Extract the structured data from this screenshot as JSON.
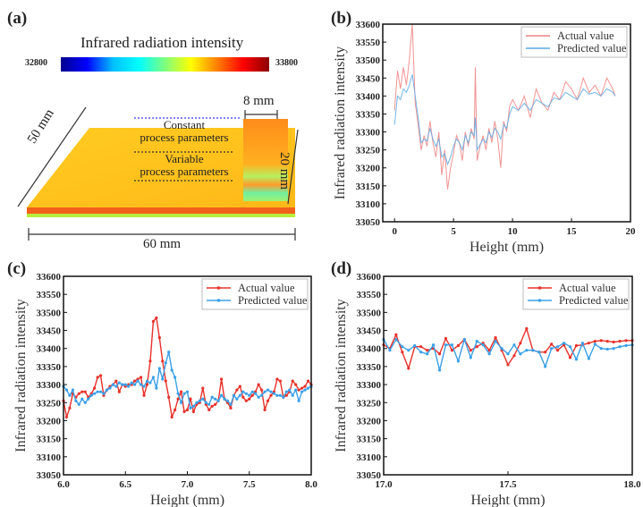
{
  "panel_a": {
    "label": "(a)",
    "colorbar_title": "Infrared radiation intensity",
    "colorbar_min": "32800",
    "colorbar_max": "33800",
    "colormap": [
      "#00008f",
      "#0000ff",
      "#00bfff",
      "#00ffff",
      "#7fff7f",
      "#ffff00",
      "#ff7f00",
      "#ff0000",
      "#8b0000"
    ],
    "dim_width": "8 mm",
    "dim_height": "20 mm",
    "dim_depth": "50 mm",
    "dim_length": "60 mm",
    "region_constant_line1": "Constant",
    "region_constant_line2": "process parameters",
    "region_variable_line1": "Variable",
    "region_variable_line2": "process parameters"
  },
  "chart_data": [
    {
      "id": "b",
      "panel_label": "(b)",
      "type": "line",
      "xlabel": "Height (mm)",
      "ylabel": "Infrared radiation intensity",
      "xlim": [
        -1,
        20
      ],
      "ylim": [
        33050,
        33600
      ],
      "xticks": [
        0,
        5,
        10,
        15,
        20
      ],
      "xtick_labels": [
        "0",
        "5",
        "10",
        "15",
        "20"
      ],
      "yticks": [
        33050,
        33100,
        33150,
        33200,
        33250,
        33300,
        33350,
        33400,
        33450,
        33500,
        33550,
        33600
      ],
      "legend": "top-right",
      "markers": false,
      "series": [
        {
          "name": "Actual value",
          "color": "#f08080",
          "x": [
            0,
            0.25,
            0.5,
            0.75,
            1.0,
            1.25,
            1.5,
            1.75,
            2.0,
            2.25,
            2.5,
            2.75,
            3.0,
            3.25,
            3.5,
            3.75,
            4.0,
            4.25,
            4.5,
            4.75,
            5.0,
            5.25,
            5.5,
            5.75,
            6.0,
            6.25,
            6.5,
            6.75,
            6.85,
            7.0,
            7.25,
            7.5,
            7.75,
            8.0,
            8.25,
            8.5,
            8.75,
            9.0,
            9.25,
            9.5,
            9.75,
            10.0,
            10.5,
            11.0,
            11.5,
            12.0,
            12.5,
            13.0,
            13.5,
            14.0,
            14.5,
            15.0,
            15.5,
            16.0,
            16.5,
            17.0,
            17.5,
            18.0,
            18.5,
            18.7
          ],
          "y": [
            33360,
            33470,
            33420,
            33480,
            33430,
            33500,
            33600,
            33380,
            33320,
            33250,
            33290,
            33260,
            33330,
            33270,
            33230,
            33300,
            33180,
            33250,
            33140,
            33200,
            33240,
            33290,
            33270,
            33220,
            33300,
            33260,
            33310,
            33280,
            33480,
            33220,
            33260,
            33290,
            33250,
            33310,
            33270,
            33330,
            33280,
            33200,
            33330,
            33300,
            33370,
            33390,
            33360,
            33400,
            33340,
            33420,
            33380,
            33360,
            33410,
            33390,
            33440,
            33420,
            33390,
            33450,
            33410,
            33430,
            33400,
            33450,
            33420,
            33400
          ]
        },
        {
          "name": "Predicted value",
          "color": "#5aaae6",
          "x": [
            0,
            0.25,
            0.5,
            0.75,
            1.0,
            1.25,
            1.5,
            1.75,
            2.0,
            2.25,
            2.5,
            2.75,
            3.0,
            3.25,
            3.5,
            3.75,
            4.0,
            4.25,
            4.5,
            4.75,
            5.0,
            5.25,
            5.5,
            5.75,
            6.0,
            6.25,
            6.5,
            6.75,
            6.85,
            7.0,
            7.25,
            7.5,
            7.75,
            8.0,
            8.25,
            8.5,
            8.75,
            9.0,
            9.25,
            9.5,
            9.75,
            10.0,
            10.5,
            11.0,
            11.5,
            12.0,
            12.5,
            13.0,
            13.5,
            14.0,
            14.5,
            15.0,
            15.5,
            16.0,
            16.5,
            17.0,
            17.5,
            18.0,
            18.5,
            18.7
          ],
          "y": [
            33320,
            33400,
            33390,
            33420,
            33410,
            33430,
            33460,
            33400,
            33340,
            33270,
            33280,
            33275,
            33310,
            33280,
            33260,
            33280,
            33230,
            33240,
            33210,
            33230,
            33260,
            33280,
            33270,
            33250,
            33290,
            33270,
            33300,
            33290,
            33340,
            33250,
            33265,
            33280,
            33270,
            33300,
            33285,
            33310,
            33300,
            33280,
            33320,
            33310,
            33350,
            33370,
            33360,
            33380,
            33360,
            33390,
            33380,
            33370,
            33395,
            33390,
            33410,
            33400,
            33390,
            33420,
            33405,
            33410,
            33400,
            33420,
            33410,
            33400
          ]
        }
      ]
    },
    {
      "id": "c",
      "panel_label": "(c)",
      "type": "line",
      "xlabel": "Height (mm)",
      "ylabel": "Infrared radiation intensity",
      "xlim": [
        6.0,
        8.0
      ],
      "ylim": [
        33050,
        33600
      ],
      "xticks": [
        6.0,
        6.5,
        7.0,
        7.5,
        8.0
      ],
      "xtick_labels": [
        "6.0",
        "6.5",
        "7.0",
        "7.5",
        "8.0"
      ],
      "yticks": [
        33050,
        33100,
        33150,
        33200,
        33250,
        33300,
        33350,
        33400,
        33450,
        33500,
        33550,
        33600
      ],
      "legend": "top-right",
      "markers": true,
      "series": [
        {
          "name": "Actual value",
          "color": "#e8302a",
          "x": [
            6.0,
            6.025,
            6.05,
            6.075,
            6.1,
            6.125,
            6.15,
            6.175,
            6.2,
            6.225,
            6.25,
            6.275,
            6.3,
            6.325,
            6.35,
            6.375,
            6.4,
            6.425,
            6.45,
            6.475,
            6.5,
            6.525,
            6.55,
            6.575,
            6.6,
            6.625,
            6.65,
            6.675,
            6.7,
            6.725,
            6.75,
            6.775,
            6.8,
            6.825,
            6.85,
            6.875,
            6.9,
            6.925,
            6.95,
            6.975,
            7.0,
            7.025,
            7.05,
            7.075,
            7.1,
            7.125,
            7.15,
            7.175,
            7.2,
            7.225,
            7.25,
            7.275,
            7.3,
            7.325,
            7.35,
            7.375,
            7.4,
            7.425,
            7.45,
            7.475,
            7.5,
            7.525,
            7.55,
            7.575,
            7.6,
            7.625,
            7.65,
            7.675,
            7.7,
            7.725,
            7.75,
            7.775,
            7.8,
            7.825,
            7.85,
            7.875,
            7.9,
            7.925,
            7.95,
            7.975,
            8.0
          ],
          "y": [
            33255,
            33210,
            33235,
            33275,
            33265,
            33275,
            33280,
            33280,
            33265,
            33275,
            33290,
            33320,
            33325,
            33270,
            33285,
            33295,
            33300,
            33310,
            33280,
            33300,
            33295,
            33300,
            33300,
            33310,
            33315,
            33320,
            33270,
            33300,
            33365,
            33475,
            33485,
            33430,
            33365,
            33310,
            33265,
            33210,
            33230,
            33260,
            33280,
            33225,
            33230,
            33260,
            33225,
            33245,
            33250,
            33290,
            33245,
            33230,
            33240,
            33245,
            33255,
            33315,
            33260,
            33250,
            33235,
            33270,
            33285,
            33295,
            33265,
            33255,
            33260,
            33270,
            33280,
            33300,
            33285,
            33230,
            33255,
            33270,
            33280,
            33315,
            33310,
            33265,
            33270,
            33280,
            33310,
            33300,
            33285,
            33290,
            33295,
            33310,
            33300
          ]
        },
        {
          "name": "Predicted value",
          "color": "#3aa0e8",
          "x": [
            6.0,
            6.025,
            6.05,
            6.075,
            6.1,
            6.125,
            6.15,
            6.175,
            6.2,
            6.225,
            6.25,
            6.275,
            6.3,
            6.325,
            6.35,
            6.375,
            6.4,
            6.425,
            6.45,
            6.475,
            6.5,
            6.525,
            6.55,
            6.575,
            6.6,
            6.625,
            6.65,
            6.675,
            6.7,
            6.725,
            6.75,
            6.775,
            6.8,
            6.825,
            6.85,
            6.875,
            6.9,
            6.925,
            6.95,
            6.975,
            7.0,
            7.025,
            7.05,
            7.075,
            7.1,
            7.125,
            7.15,
            7.175,
            7.2,
            7.225,
            7.25,
            7.275,
            7.3,
            7.325,
            7.35,
            7.375,
            7.4,
            7.425,
            7.45,
            7.475,
            7.5,
            7.525,
            7.55,
            7.575,
            7.6,
            7.625,
            7.65,
            7.675,
            7.7,
            7.725,
            7.75,
            7.775,
            7.8,
            7.825,
            7.85,
            7.875,
            7.9,
            7.925,
            7.95,
            7.975,
            8.0
          ],
          "y": [
            33295,
            33285,
            33270,
            33285,
            33255,
            33245,
            33260,
            33250,
            33260,
            33270,
            33275,
            33280,
            33280,
            33275,
            33285,
            33290,
            33300,
            33295,
            33305,
            33300,
            33300,
            33295,
            33305,
            33300,
            33310,
            33300,
            33295,
            33310,
            33305,
            33320,
            33290,
            33345,
            33315,
            33360,
            33390,
            33340,
            33320,
            33275,
            33250,
            33275,
            33280,
            33235,
            33240,
            33250,
            33255,
            33260,
            33250,
            33245,
            33265,
            33260,
            33255,
            33270,
            33260,
            33255,
            33245,
            33270,
            33260,
            33270,
            33280,
            33275,
            33270,
            33280,
            33275,
            33265,
            33270,
            33280,
            33285,
            33280,
            33275,
            33270,
            33270,
            33265,
            33280,
            33285,
            33270,
            33285,
            33255,
            33280,
            33285,
            33290,
            33295
          ]
        }
      ]
    },
    {
      "id": "d",
      "panel_label": "(d)",
      "type": "line",
      "xlabel": "Height (mm)",
      "ylabel": "Infrared radiation intensity",
      "xlim": [
        17.0,
        18.0
      ],
      "ylim": [
        33050,
        33600
      ],
      "xticks": [
        17.0,
        17.5,
        18.0
      ],
      "xtick_labels": [
        "17.0",
        "17.5",
        "18.0"
      ],
      "yticks": [
        33050,
        33100,
        33150,
        33200,
        33250,
        33300,
        33350,
        33400,
        33450,
        33500,
        33550,
        33600
      ],
      "legend": "top-right",
      "markers": true,
      "series": [
        {
          "name": "Actual value",
          "color": "#e8302a",
          "x": [
            17.0,
            17.025,
            17.05,
            17.075,
            17.1,
            17.125,
            17.15,
            17.175,
            17.2,
            17.225,
            17.25,
            17.275,
            17.3,
            17.325,
            17.35,
            17.375,
            17.4,
            17.425,
            17.45,
            17.475,
            17.5,
            17.525,
            17.55,
            17.575,
            17.6,
            17.625,
            17.65,
            17.675,
            17.7,
            17.725,
            17.75,
            17.775,
            17.8,
            17.825,
            17.85,
            17.875,
            17.9,
            17.925,
            17.95,
            17.975,
            18.0
          ],
          "y": [
            33410,
            33400,
            33438,
            33390,
            33345,
            33405,
            33405,
            33395,
            33400,
            33385,
            33428,
            33395,
            33408,
            33425,
            33395,
            33405,
            33415,
            33395,
            33430,
            33395,
            33355,
            33380,
            33415,
            33455,
            33395,
            33390,
            33390,
            33412,
            33395,
            33410,
            33375,
            33408,
            33410,
            33415,
            33420,
            33422,
            33420,
            33418,
            33420,
            33422,
            33422
          ]
        },
        {
          "name": "Predicted value",
          "color": "#3aa0e8",
          "x": [
            17.0,
            17.025,
            17.05,
            17.075,
            17.1,
            17.125,
            17.15,
            17.175,
            17.2,
            17.225,
            17.25,
            17.275,
            17.3,
            17.325,
            17.35,
            17.375,
            17.4,
            17.425,
            17.45,
            17.475,
            17.5,
            17.525,
            17.55,
            17.575,
            17.6,
            17.625,
            17.65,
            17.675,
            17.7,
            17.725,
            17.75,
            17.775,
            17.8,
            17.825,
            17.85,
            17.875,
            17.9,
            17.925,
            17.95,
            17.975,
            18.0
          ],
          "y": [
            33425,
            33395,
            33425,
            33405,
            33395,
            33408,
            33390,
            33385,
            33410,
            33340,
            33410,
            33410,
            33365,
            33425,
            33375,
            33420,
            33410,
            33385,
            33420,
            33400,
            33385,
            33410,
            33385,
            33395,
            33395,
            33390,
            33350,
            33400,
            33405,
            33415,
            33405,
            33370,
            33415,
            33372,
            33412,
            33400,
            33398,
            33400,
            33405,
            33408,
            33410
          ]
        }
      ]
    }
  ]
}
